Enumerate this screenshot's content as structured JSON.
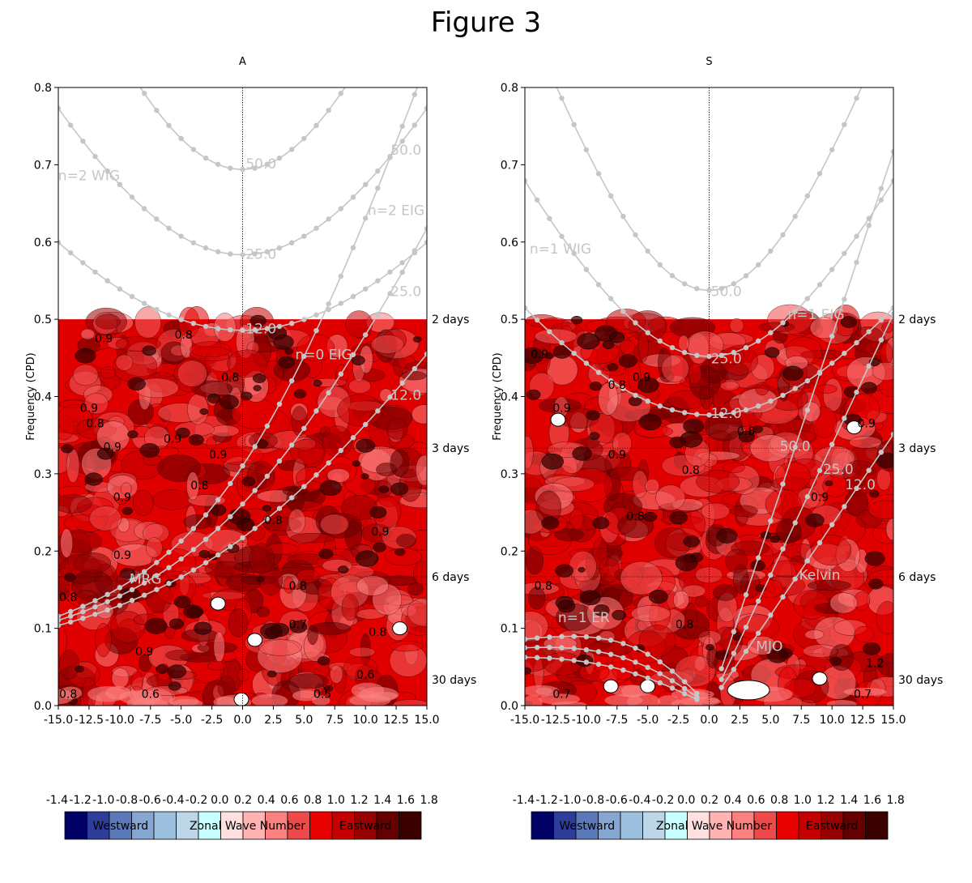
{
  "figure_title": "Figure 3",
  "chart_data": [
    {
      "type": "heatmap",
      "title": "A",
      "xlabel": "",
      "ylabel": "Frequency (CPD)",
      "xlim": [
        -15,
        15
      ],
      "ylim": [
        0,
        0.8
      ],
      "x_ticks": [
        "-15.0",
        "-12.5",
        "-10.0",
        "-7.5",
        "-5.0",
        "-2.5",
        "0.0",
        "2.5",
        "5.0",
        "7.5",
        "10.0",
        "12.5",
        "15.0"
      ],
      "y_ticks": [
        "0.0",
        "0.1",
        "0.2",
        "0.3",
        "0.4",
        "0.5",
        "0.6",
        "0.7",
        "0.8"
      ],
      "period_labels": [
        {
          "freq": 0.5,
          "label": "2 days"
        },
        {
          "freq": 0.3333,
          "label": "3 days"
        },
        {
          "freq": 0.1667,
          "label": "6 days"
        },
        {
          "freq": 0.0333,
          "label": "30 days"
        }
      ],
      "data_region_max_freq": 0.5,
      "dispersion_curves": [
        {
          "kind": "wig",
          "n": 2,
          "h": 50
        },
        {
          "kind": "wig",
          "n": 2,
          "h": 25
        },
        {
          "kind": "wig",
          "n": 2,
          "h": 12
        },
        {
          "kind": "eig",
          "n": 0,
          "h": 50
        },
        {
          "kind": "eig",
          "n": 0,
          "h": 25
        },
        {
          "kind": "eig",
          "n": 0,
          "h": 12
        }
      ],
      "annotations": [
        {
          "text": "n=2 WIG",
          "x": -12.5,
          "y": 0.68
        },
        {
          "text": "50.0",
          "x": 1.5,
          "y": 0.695
        },
        {
          "text": "n=2 EIG",
          "x": 12.5,
          "y": 0.635
        },
        {
          "text": "50.0",
          "x": 13.3,
          "y": 0.713
        },
        {
          "text": "25.0",
          "x": 1.5,
          "y": 0.578
        },
        {
          "text": "25.0",
          "x": 13.3,
          "y": 0.53
        },
        {
          "text": "12.0",
          "x": 1.5,
          "y": 0.482
        },
        {
          "text": "n=0 EIG",
          "x": 6.6,
          "y": 0.448
        },
        {
          "text": "12.0",
          "x": 13.3,
          "y": 0.396
        },
        {
          "text": "MRG",
          "x": -7.9,
          "y": 0.158
        }
      ],
      "contour_labels": [
        {
          "text": "0.9",
          "x": -11.3,
          "y": 0.47
        },
        {
          "text": "0.8",
          "x": -4.8,
          "y": 0.475
        },
        {
          "text": "0.8",
          "x": -1.0,
          "y": 0.42
        },
        {
          "text": "0.9",
          "x": -12.5,
          "y": 0.38
        },
        {
          "text": "0.8",
          "x": -12.0,
          "y": 0.36
        },
        {
          "text": "0.9",
          "x": -10.6,
          "y": 0.33
        },
        {
          "text": "0.9",
          "x": -5.7,
          "y": 0.34
        },
        {
          "text": "0.9",
          "x": -2.0,
          "y": 0.32
        },
        {
          "text": "0.8",
          "x": -3.5,
          "y": 0.28
        },
        {
          "text": "0.9",
          "x": -9.8,
          "y": 0.265
        },
        {
          "text": "0.8",
          "x": 2.5,
          "y": 0.235
        },
        {
          "text": "0.9",
          "x": 11.2,
          "y": 0.22
        },
        {
          "text": "0.9",
          "x": -9.8,
          "y": 0.19
        },
        {
          "text": "0.8",
          "x": -14.2,
          "y": 0.135
        },
        {
          "text": "0.8",
          "x": 4.5,
          "y": 0.15
        },
        {
          "text": "0.8",
          "x": 11.0,
          "y": 0.09
        },
        {
          "text": "0.7",
          "x": 4.5,
          "y": 0.1
        },
        {
          "text": "0.9",
          "x": -8.0,
          "y": 0.065
        },
        {
          "text": "0.6",
          "x": 10.0,
          "y": 0.035
        },
        {
          "text": "0.8",
          "x": -14.2,
          "y": 0.01
        },
        {
          "text": "0.6",
          "x": -7.5,
          "y": 0.01
        },
        {
          "text": "0.5",
          "x": 6.5,
          "y": 0.01
        }
      ],
      "white_spots": [
        [
          -2.0,
          0.132
        ],
        [
          1.0,
          0.085
        ],
        [
          12.8,
          0.1
        ],
        [
          -0.1,
          0.008
        ]
      ],
      "colorbar": {
        "tick_labels": [
          "-1.4",
          "-1.2",
          "-1.0",
          "-0.8",
          "-0.6",
          "-0.4",
          "-0.2",
          "0.0",
          "0.2",
          "0.4",
          "0.6",
          "0.8",
          "1.0",
          "1.2",
          "1.4",
          "1.6",
          "1.8"
        ],
        "colors": [
          "#000066",
          "#2e3d9a",
          "#5b78b8",
          "#84a6d0",
          "#9cbfdd",
          "#bcd6e8",
          "#c6ffff",
          "#ffe0e0",
          "#ffb3b3",
          "#fb8080",
          "#ee4a4a",
          "#e60000",
          "#c40000",
          "#960000",
          "#650000",
          "#3b0000"
        ],
        "labels": [
          "Westward",
          "Zonal Wave Number",
          "Eastward"
        ]
      }
    },
    {
      "type": "heatmap",
      "title": "S",
      "xlabel": "",
      "ylabel": "Frequency (CPD)",
      "xlim": [
        -15,
        15
      ],
      "ylim": [
        0,
        0.8
      ],
      "x_ticks": [
        "-15.0",
        "-12.5",
        "-10.0",
        "-7.5",
        "-5.0",
        "-2.5",
        "0.0",
        "2.5",
        "5.0",
        "7.5",
        "10.0",
        "12.5",
        "15.0"
      ],
      "y_ticks": [
        "0.0",
        "0.1",
        "0.2",
        "0.3",
        "0.4",
        "0.5",
        "0.6",
        "0.7",
        "0.8"
      ],
      "period_labels": [
        {
          "freq": 0.5,
          "label": "2 days"
        },
        {
          "freq": 0.3333,
          "label": "3 days"
        },
        {
          "freq": 0.1667,
          "label": "6 days"
        },
        {
          "freq": 0.0333,
          "label": "30 days"
        }
      ],
      "data_region_max_freq": 0.5,
      "dispersion_curves": [
        {
          "kind": "wig",
          "n": 1,
          "h": 50
        },
        {
          "kind": "wig",
          "n": 1,
          "h": 25
        },
        {
          "kind": "wig",
          "n": 1,
          "h": 12
        },
        {
          "kind": "kelvin",
          "h": 50
        },
        {
          "kind": "kelvin",
          "h": 25
        },
        {
          "kind": "kelvin",
          "h": 12
        },
        {
          "kind": "er",
          "n": 1,
          "h": 50
        },
        {
          "kind": "er",
          "n": 1,
          "h": 25
        },
        {
          "kind": "er",
          "n": 1,
          "h": 12
        }
      ],
      "annotations": [
        {
          "text": "n=1 WIG",
          "x": -12.1,
          "y": 0.585
        },
        {
          "text": "50.0",
          "x": 1.4,
          "y": 0.53
        },
        {
          "text": "n=1 EIG",
          "x": 8.7,
          "y": 0.5
        },
        {
          "text": "25.0",
          "x": 1.4,
          "y": 0.443
        },
        {
          "text": "12.0",
          "x": 1.4,
          "y": 0.372
        },
        {
          "text": "50.0",
          "x": 7.0,
          "y": 0.33
        },
        {
          "text": "25.0",
          "x": 10.5,
          "y": 0.3
        },
        {
          "text": "12.0",
          "x": 12.3,
          "y": 0.28
        },
        {
          "text": "Kelvin",
          "x": 9.0,
          "y": 0.163
        },
        {
          "text": "n=1 ER",
          "x": -10.2,
          "y": 0.108
        },
        {
          "text": "MJO",
          "x": 4.9,
          "y": 0.071
        }
      ],
      "contour_labels": [
        {
          "text": "0.9",
          "x": -13.8,
          "y": 0.45
        },
        {
          "text": "0.9",
          "x": -5.5,
          "y": 0.42
        },
        {
          "text": "0.8",
          "x": -7.5,
          "y": 0.41
        },
        {
          "text": "0.9",
          "x": -12.0,
          "y": 0.38
        },
        {
          "text": "0.9",
          "x": -7.5,
          "y": 0.32
        },
        {
          "text": "0.8",
          "x": -1.5,
          "y": 0.3
        },
        {
          "text": "0.8",
          "x": -6.0,
          "y": 0.24
        },
        {
          "text": "0.8",
          "x": -13.5,
          "y": 0.15
        },
        {
          "text": "0.8",
          "x": -2.0,
          "y": 0.1
        },
        {
          "text": "0.8",
          "x": 3.0,
          "y": 0.35
        },
        {
          "text": "0.9",
          "x": 9.0,
          "y": 0.265
        },
        {
          "text": "0.7",
          "x": -12.0,
          "y": 0.01
        },
        {
          "text": "0.7",
          "x": 12.5,
          "y": 0.01
        },
        {
          "text": "1.2",
          "x": 13.5,
          "y": 0.05
        },
        {
          "text": "0.9",
          "x": 12.8,
          "y": 0.36
        }
      ],
      "white_spots": [
        [
          -5.0,
          0.025
        ],
        [
          -8.0,
          0.025
        ],
        [
          9.0,
          0.035
        ],
        [
          -12.3,
          0.37
        ],
        [
          11.8,
          0.36
        ]
      ],
      "big_white_spot": [
        3.2,
        0.02
      ],
      "colorbar": {
        "tick_labels": [
          "-1.4",
          "-1.2",
          "-1.0",
          "-0.8",
          "-0.6",
          "-0.4",
          "-0.2",
          "0.0",
          "0.2",
          "0.4",
          "0.6",
          "0.8",
          "1.0",
          "1.2",
          "1.4",
          "1.6",
          "1.8"
        ],
        "colors": [
          "#000066",
          "#2e3d9a",
          "#5b78b8",
          "#84a6d0",
          "#9cbfdd",
          "#bcd6e8",
          "#c6ffff",
          "#ffe0e0",
          "#ffb3b3",
          "#fb8080",
          "#ee4a4a",
          "#e60000",
          "#c40000",
          "#960000",
          "#650000",
          "#3b0000"
        ],
        "labels": [
          "Westward",
          "Zonal Wave Number",
          "Eastward"
        ]
      }
    }
  ]
}
